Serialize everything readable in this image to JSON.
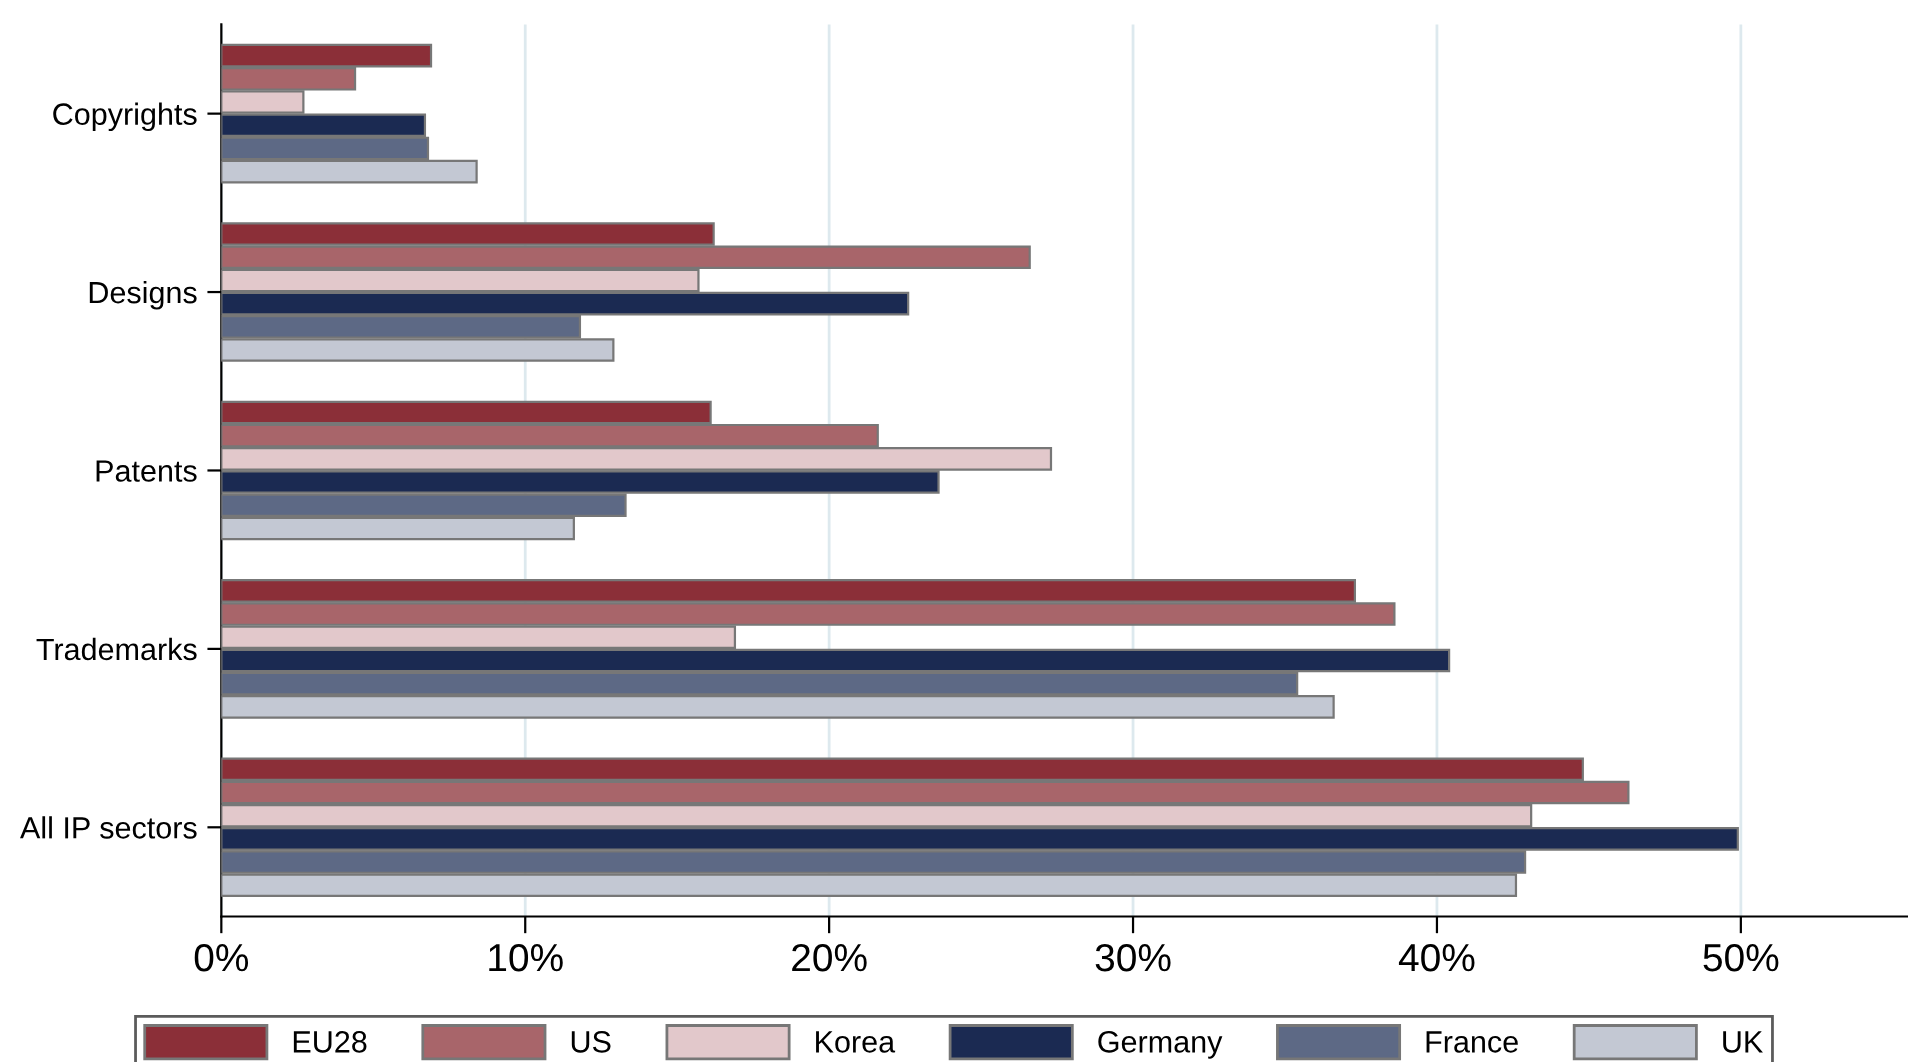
{
  "chart_data": {
    "type": "bar",
    "orientation": "horizontal",
    "categories": [
      "Copyrights",
      "Designs",
      "Patents",
      "Trademarks",
      "All IP sectors"
    ],
    "series": [
      {
        "name": "EU28",
        "color": "#8b2f38",
        "values": [
          6.9,
          16.2,
          16.1,
          37.3,
          44.8
        ]
      },
      {
        "name": "US",
        "color": "#a8656a",
        "values": [
          4.4,
          26.6,
          21.6,
          38.6,
          46.3
        ]
      },
      {
        "name": "Korea",
        "color": "#e2c8cb",
        "values": [
          2.7,
          15.7,
          27.3,
          16.9,
          43.1
        ]
      },
      {
        "name": "Germany",
        "color": "#1b2a52",
        "values": [
          6.7,
          22.6,
          23.6,
          40.4,
          49.9
        ]
      },
      {
        "name": "France",
        "color": "#5d6985",
        "values": [
          6.8,
          11.8,
          13.3,
          35.4,
          42.9
        ]
      },
      {
        "name": "UK",
        "color": "#c3c8d3",
        "values": [
          8.4,
          12.9,
          11.6,
          36.6,
          42.6
        ]
      }
    ],
    "xlim": [
      0,
      55.5
    ],
    "xticks": [
      {
        "value": 0,
        "label": "0%"
      },
      {
        "value": 10,
        "label": "10%"
      },
      {
        "value": 20,
        "label": "20%"
      },
      {
        "value": 30,
        "label": "30%"
      },
      {
        "value": 40,
        "label": "40%"
      },
      {
        "value": 50,
        "label": "50%"
      }
    ],
    "grid": "x",
    "legend": "bottom"
  }
}
